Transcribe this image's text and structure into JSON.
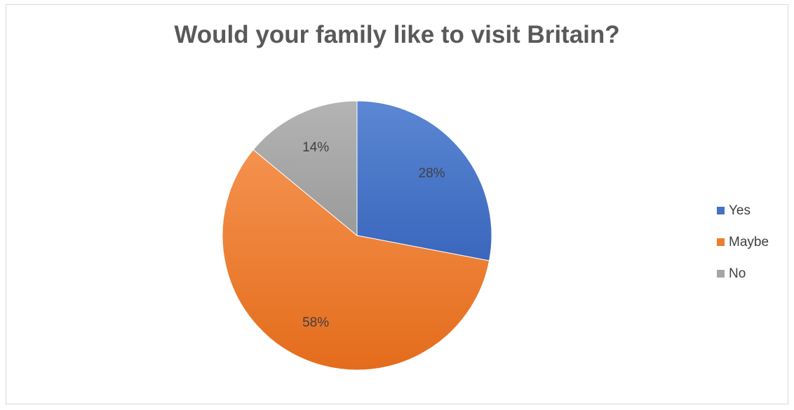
{
  "chart_data": {
    "type": "pie",
    "title": "Would your family like to visit Britain?",
    "categories": [
      "Yes",
      "Maybe",
      "No"
    ],
    "values": [
      28,
      58,
      14
    ],
    "data_labels": [
      "28%",
      "58%",
      "14%"
    ],
    "colors": [
      "#4472c4",
      "#ed7d31",
      "#a5a5a5"
    ],
    "start_angle_deg": 0,
    "direction": "clockwise",
    "legend_position": "right"
  }
}
